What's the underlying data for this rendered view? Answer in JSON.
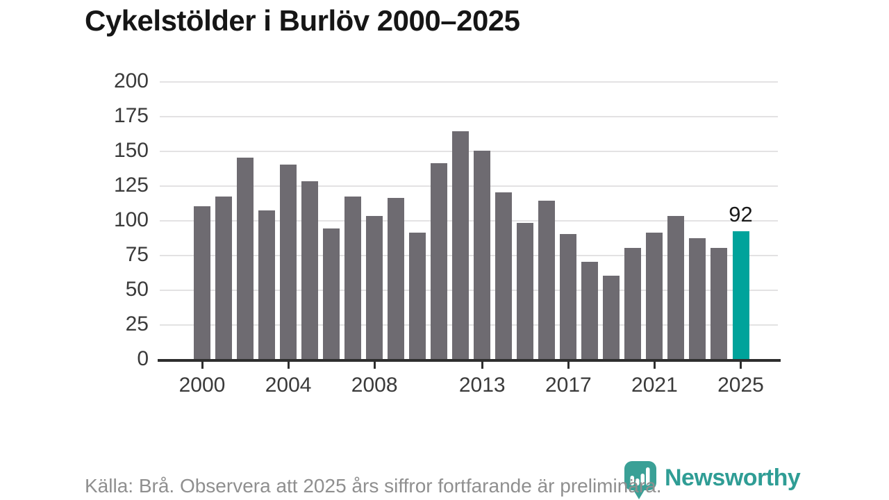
{
  "title": "Cykelstölder i Burlöv 2000–2025",
  "chart_data": {
    "type": "bar",
    "x": [
      2000,
      2001,
      2002,
      2003,
      2004,
      2005,
      2006,
      2007,
      2008,
      2009,
      2010,
      2011,
      2012,
      2013,
      2014,
      2015,
      2016,
      2017,
      2018,
      2019,
      2020,
      2021,
      2022,
      2023,
      2024,
      2025
    ],
    "values": [
      110,
      117,
      145,
      107,
      140,
      128,
      94,
      117,
      103,
      116,
      91,
      141,
      164,
      150,
      120,
      98,
      114,
      90,
      70,
      60,
      80,
      91,
      103,
      87,
      80,
      92
    ],
    "title": "Cykelstölder i Burlöv 2000–2025",
    "xlabel": "",
    "ylabel": "",
    "ylim": [
      0,
      200
    ],
    "y_axis_ticks": [
      0,
      25,
      50,
      75,
      100,
      125,
      150,
      175,
      200
    ],
    "x_axis_ticks": [
      2000,
      2004,
      2008,
      2013,
      2017,
      2021,
      2025
    ],
    "grid": true,
    "legend": "none",
    "highlight_index": 25,
    "highlight_label": "92",
    "bar_color": "#6e6b71",
    "highlight_color": "#00a39b"
  },
  "footer": {
    "source_note": "Källa: Brå. Observera att 2025 års siffror fortfarande är preliminära."
  },
  "branding": {
    "logo_text": "Newsworthy",
    "logo_color": "#2f9d95",
    "logo_icon": "bar-chart-pin-icon"
  }
}
